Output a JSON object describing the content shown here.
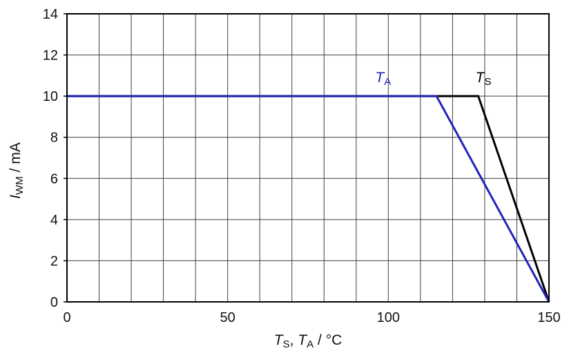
{
  "chart_data": {
    "type": "line",
    "title": "",
    "xlabel": {
      "t1": "T",
      "s1": "S",
      "comma": ", ",
      "t2": "T",
      "s2": "A",
      "unit": " / °C"
    },
    "ylabel": {
      "t1": "I",
      "s1": "WM",
      "unit": " / mA"
    },
    "x_axis": {
      "min": 0,
      "max": 150,
      "grid_step": 10,
      "label_step": 50,
      "tick_labels": [
        "0",
        "50",
        "100",
        "150"
      ]
    },
    "y_axis": {
      "min": 0,
      "max": 14,
      "grid_step": 2,
      "label_step": 2,
      "tick_labels": [
        "0",
        "2",
        "4",
        "6",
        "8",
        "10",
        "12",
        "14"
      ]
    },
    "series": [
      {
        "name": "TS",
        "color": "#000000",
        "points": [
          [
            0,
            10
          ],
          [
            128,
            10
          ],
          [
            150,
            0
          ]
        ],
        "label": {
          "sym": "T",
          "sub": "S",
          "x": 129.6,
          "y": 10.55
        }
      },
      {
        "name": "TA",
        "color": "#2222bb",
        "points": [
          [
            0,
            10
          ],
          [
            115,
            10
          ],
          [
            150,
            0
          ]
        ],
        "label": {
          "sym": "T",
          "sub": "A",
          "x": 98.4,
          "y": 10.55
        }
      }
    ],
    "grid": true,
    "grid_color": "#3f3f3f",
    "frame_color": "#000000",
    "tick_text_color": "#111111",
    "background": "#ffffff",
    "legend_position": "labels-inside-plot-above-lines"
  }
}
